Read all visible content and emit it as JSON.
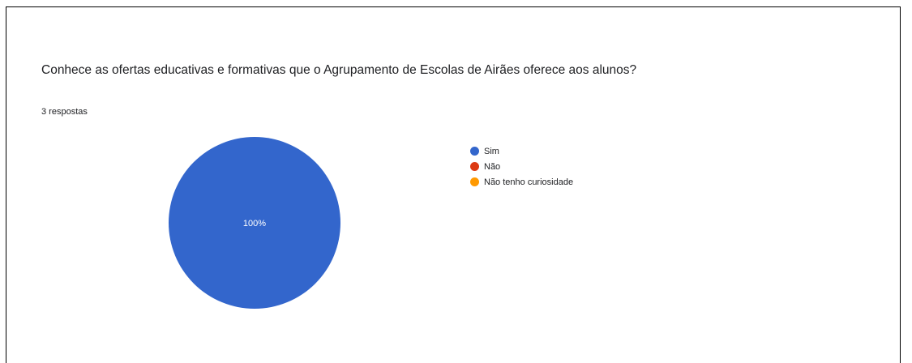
{
  "question": {
    "title": "Conhece as ofertas educativas e formativas que o Agrupamento de Escolas de Airães oferece aos alunos?",
    "responses": "3 respostas"
  },
  "chart_data": {
    "type": "pie",
    "categories": [
      "Sim",
      "Não",
      "Não tenho curiosidade"
    ],
    "values": [
      100,
      0,
      0
    ],
    "colors": [
      "#3366cc",
      "#dc3912",
      "#ff9900"
    ],
    "slice_labels": [
      "100%"
    ],
    "legend_position": "right"
  }
}
